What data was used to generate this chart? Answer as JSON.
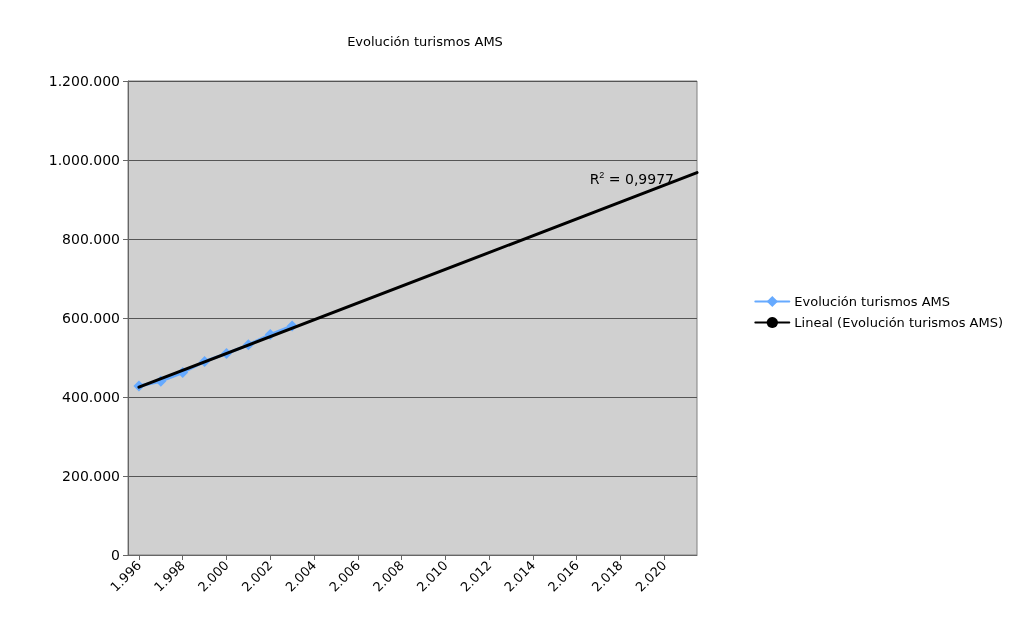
{
  "chart_data": {
    "type": "line",
    "title": "Evolución turismos AMS",
    "xlim": [
      1995.5,
      2021.5
    ],
    "xticks": [
      {
        "value": 1996,
        "label": "1.996"
      },
      {
        "value": 1998,
        "label": "1.998"
      },
      {
        "value": 2000,
        "label": "2.000"
      },
      {
        "value": 2002,
        "label": "2.002"
      },
      {
        "value": 2004,
        "label": "2.004"
      },
      {
        "value": 2006,
        "label": "2.006"
      },
      {
        "value": 2008,
        "label": "2.008"
      },
      {
        "value": 2010,
        "label": "2.010"
      },
      {
        "value": 2012,
        "label": "2.012"
      },
      {
        "value": 2014,
        "label": "2.014"
      },
      {
        "value": 2016,
        "label": "2.016"
      },
      {
        "value": 2018,
        "label": "2.018"
      },
      {
        "value": 2020,
        "label": "2.020"
      }
    ],
    "ylim": [
      0,
      1200000
    ],
    "yticks": [
      0,
      {
        "value": 200000,
        "label": "200.000"
      },
      {
        "value": 400000,
        "label": "400.000"
      },
      {
        "value": 600000,
        "label": "600.000"
      },
      {
        "value": 800000,
        "label": "800.000"
      },
      {
        "value": 1000000,
        "label": "1.000.000"
      },
      {
        "value": 1200000,
        "label": "1.200.000"
      }
    ],
    "grid": "y",
    "legend": "right",
    "series": [
      {
        "name": "Evolución turismos AMS",
        "color": "#66aaff",
        "marker": "diamond",
        "x": [
          1996,
          1997,
          1998,
          1999,
          2000,
          2001,
          2002,
          2003
        ],
        "values": [
          428000,
          440000,
          462000,
          490000,
          510000,
          532000,
          558000,
          580000
        ]
      },
      {
        "name": "Lineal (Evolución turismos AMS)",
        "color": "#000000",
        "marker": "none",
        "x": [
          1996,
          2021.5
        ],
        "values": [
          425000,
          968000
        ]
      }
    ],
    "annotations": [
      "R$^{2}$ = 0,9977"
    ]
  }
}
